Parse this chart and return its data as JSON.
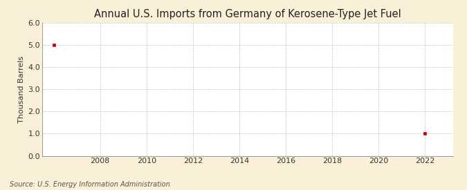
{
  "title": "Annual U.S. Imports from Germany of Kerosene-Type Jet Fuel",
  "ylabel": "Thousand Barrels",
  "source_text": "Source: U.S. Energy Information Administration",
  "x_data": [
    2006,
    2022
  ],
  "y_data": [
    5.0,
    1.0
  ],
  "marker_color": "#cc0000",
  "marker_size": 3.5,
  "xlim": [
    2005.5,
    2023.2
  ],
  "ylim": [
    0.0,
    6.0
  ],
  "yticks": [
    0.0,
    1.0,
    2.0,
    3.0,
    4.0,
    5.0,
    6.0
  ],
  "xticks": [
    2008,
    2010,
    2012,
    2014,
    2016,
    2018,
    2020,
    2022
  ],
  "figure_bg_color": "#faf0d7",
  "plot_bg_color": "#ffffff",
  "grid_color": "#aaaaaa",
  "title_fontsize": 10.5,
  "label_fontsize": 8,
  "tick_fontsize": 8,
  "source_fontsize": 7
}
